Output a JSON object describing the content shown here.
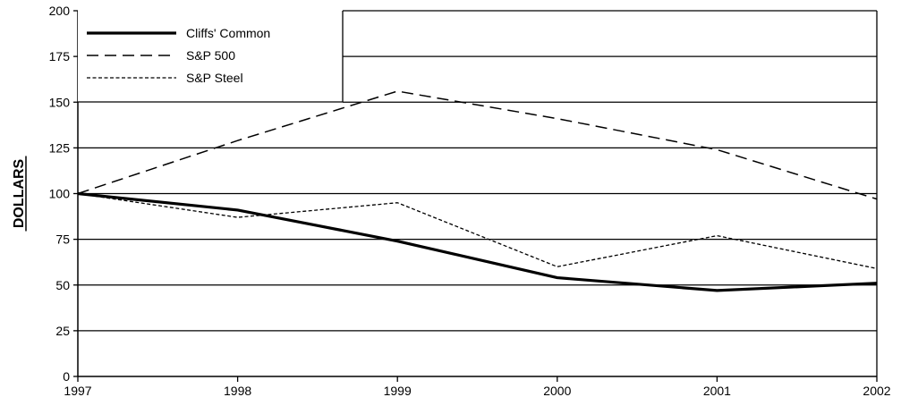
{
  "chart_data": {
    "type": "line",
    "title": "",
    "xlabel": "",
    "ylabel": "DOLLARS",
    "x": [
      "1997",
      "1998",
      "1999",
      "2000",
      "2001",
      "2002"
    ],
    "ylim": [
      0,
      200
    ],
    "yticks": [
      0,
      25,
      50,
      75,
      100,
      125,
      150,
      175,
      200
    ],
    "grid": "horizontal",
    "legend_position": "top-left",
    "series": [
      {
        "name": "Cliffs' Common",
        "values": [
          100,
          91,
          74,
          54,
          47,
          51
        ],
        "style": "solid-thick"
      },
      {
        "name": "S&P 500",
        "values": [
          100,
          129,
          156,
          141,
          124,
          97
        ],
        "style": "long-dash"
      },
      {
        "name": "S&P Steel",
        "values": [
          100,
          87,
          95,
          60,
          77,
          59
        ],
        "style": "short-dash"
      }
    ],
    "colors": {
      "line": "#000000",
      "grid": "#000000",
      "background": "#ffffff"
    }
  }
}
